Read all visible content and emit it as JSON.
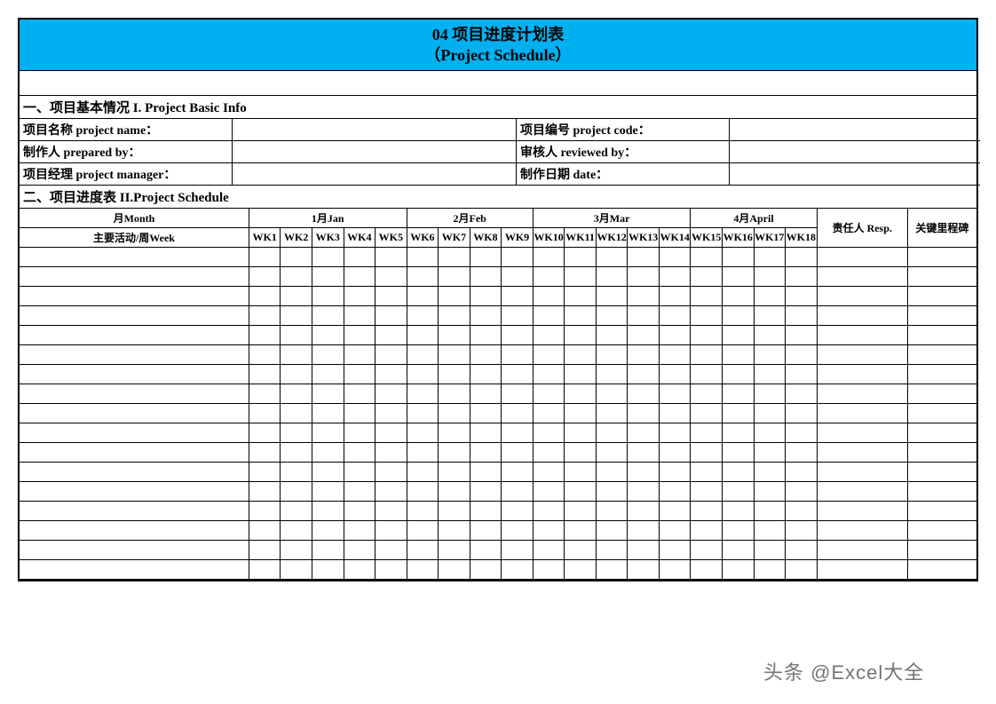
{
  "title_line1": "04  项目进度计划表",
  "title_line2": "（Project Schedule）",
  "section1_header": "一、项目基本情况 I. Project Basic Info",
  "info": {
    "project_name_label": "项目名称 project name：",
    "project_code_label": "项目编号 project code：",
    "prepared_by_label": "制作人 prepared by：",
    "reviewed_by_label": "审核人 reviewed by：",
    "project_manager_label": "项目经理 project manager：",
    "date_label": "制作日期 date：",
    "project_name_value": "",
    "project_code_value": "",
    "prepared_by_value": "",
    "reviewed_by_value": "",
    "project_manager_value": "",
    "date_value": ""
  },
  "section2_header": "二、项目进度表 II.Project Schedule",
  "schedule": {
    "month_label": "月Month",
    "activity_week_label": "主要活动/周Week",
    "months": [
      "1月Jan",
      "2月Feb",
      "3月Mar",
      "4月April"
    ],
    "month_spans": [
      5,
      4,
      5,
      4
    ],
    "weeks": [
      "WK1",
      "WK2",
      "WK3",
      "WK4",
      "WK5",
      "WK6",
      "WK7",
      "WK8",
      "WK9",
      "WK10",
      "WK11",
      "WK12",
      "WK13",
      "WK14",
      "WK15",
      "WK16",
      "WK17",
      "WK18"
    ],
    "resp_label": "责任人 Resp.",
    "milestone_label": "关键里程碑",
    "empty_rows": 17
  },
  "colors": {
    "banner_bg": "#00b0f0",
    "border": "#000000",
    "page_bg": "#ffffff"
  },
  "watermark": "头条 @Excel大全"
}
